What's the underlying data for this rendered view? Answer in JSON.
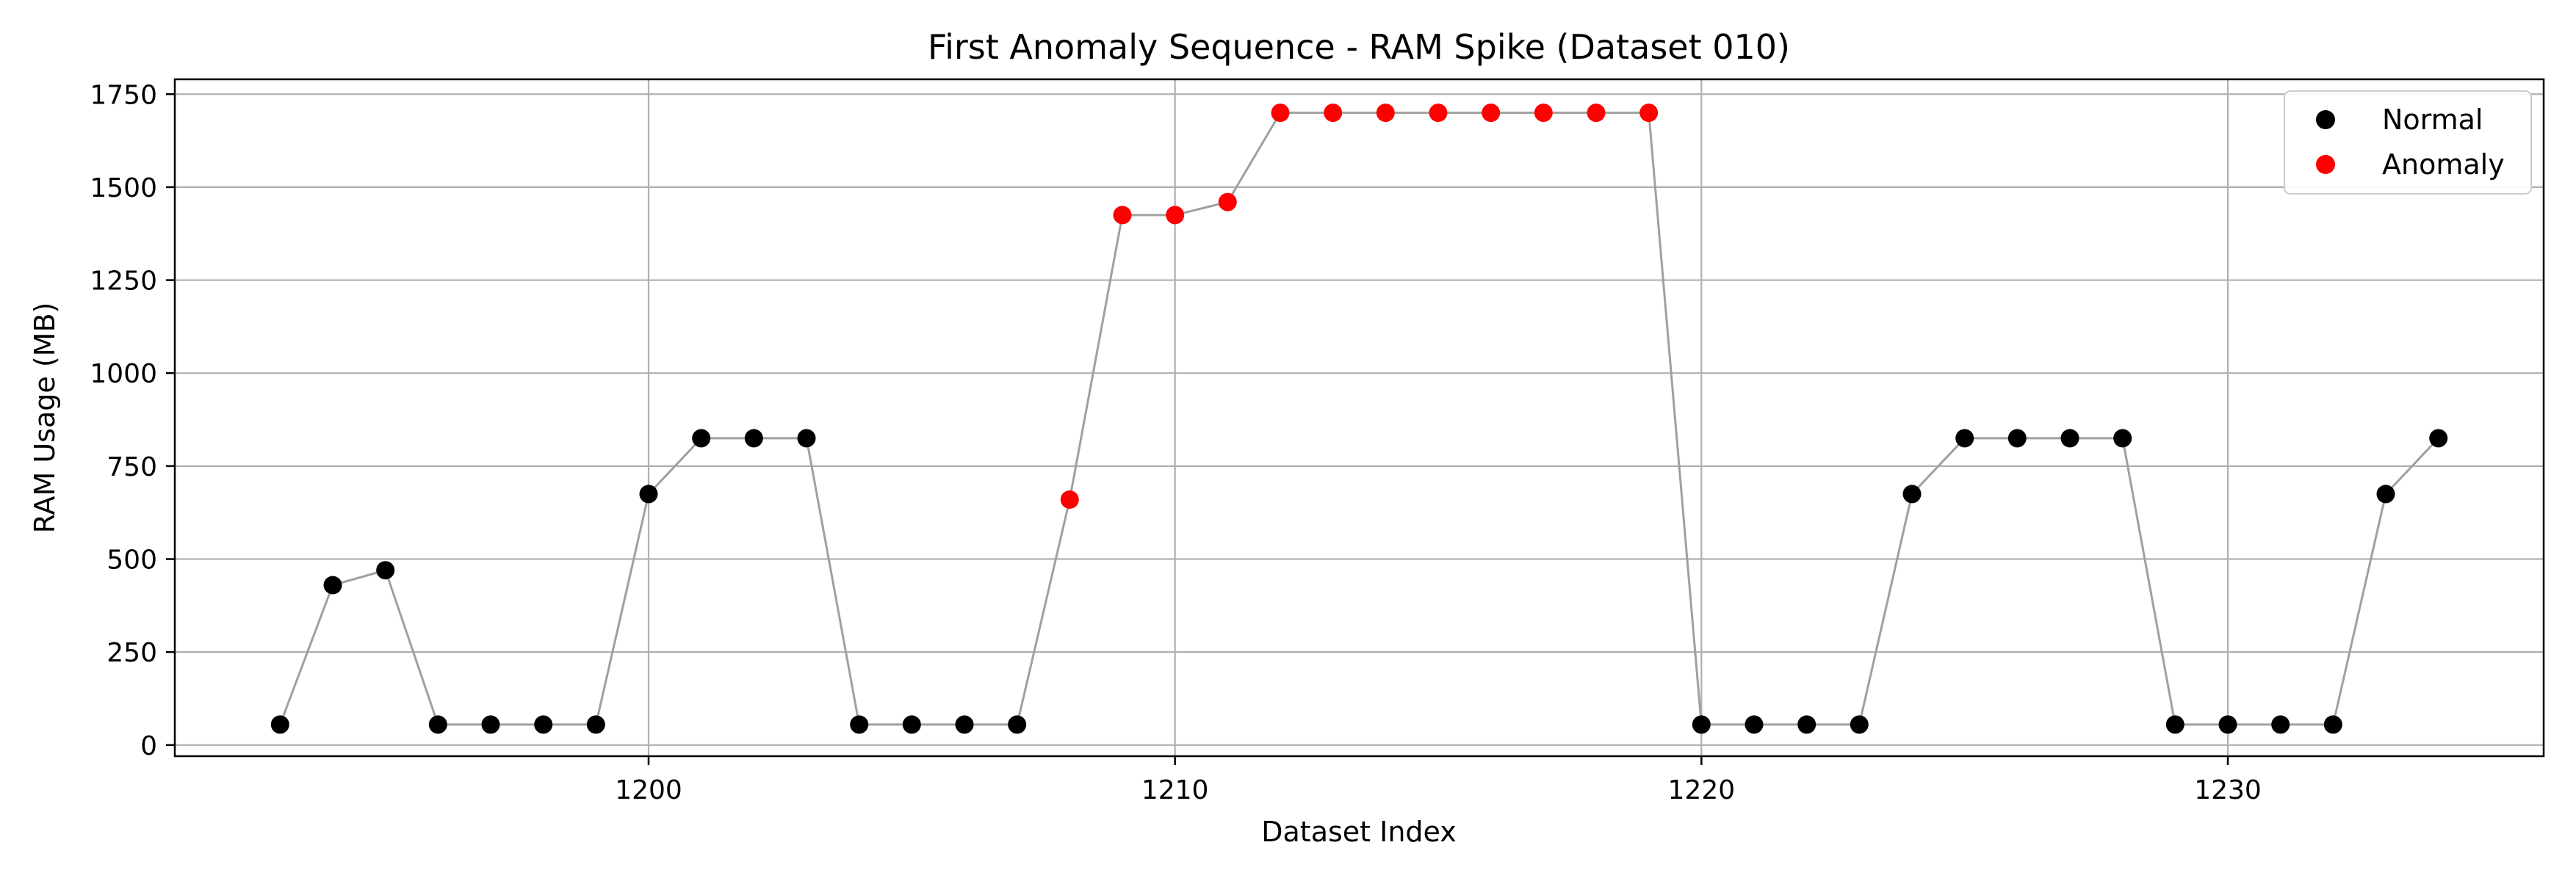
{
  "chart_data": {
    "type": "scatter",
    "title": "First Anomaly Sequence - RAM Spike (Dataset 010)",
    "xlabel": "Dataset Index",
    "ylabel": "RAM Usage (MB)",
    "xlim": [
      1191,
      1236
    ],
    "ylim": [
      -30,
      1790
    ],
    "xticks": [
      1200,
      1210,
      1220,
      1230
    ],
    "yticks": [
      0,
      250,
      500,
      750,
      1000,
      1250,
      1500,
      1750
    ],
    "grid": true,
    "legend_position": "top-right",
    "connector_line_color": "#a0a0a0",
    "series": [
      {
        "name": "Normal",
        "color": "#000000",
        "points": [
          [
            1193,
            55
          ],
          [
            1194,
            430
          ],
          [
            1195,
            470
          ],
          [
            1196,
            55
          ],
          [
            1197,
            55
          ],
          [
            1198,
            55
          ],
          [
            1199,
            55
          ],
          [
            1200,
            675
          ],
          [
            1201,
            825
          ],
          [
            1202,
            825
          ],
          [
            1203,
            825
          ],
          [
            1204,
            55
          ],
          [
            1205,
            55
          ],
          [
            1206,
            55
          ],
          [
            1207,
            55
          ],
          [
            1220,
            55
          ],
          [
            1221,
            55
          ],
          [
            1222,
            55
          ],
          [
            1223,
            55
          ],
          [
            1224,
            675
          ],
          [
            1225,
            825
          ],
          [
            1226,
            825
          ],
          [
            1227,
            825
          ],
          [
            1228,
            825
          ],
          [
            1229,
            55
          ],
          [
            1230,
            55
          ],
          [
            1231,
            55
          ],
          [
            1232,
            55
          ],
          [
            1233,
            675
          ],
          [
            1234,
            825
          ]
        ]
      },
      {
        "name": "Anomaly",
        "color": "#ff0000",
        "points": [
          [
            1208,
            660
          ],
          [
            1209,
            1425
          ],
          [
            1210,
            1425
          ],
          [
            1211,
            1460
          ],
          [
            1212,
            1700
          ],
          [
            1213,
            1700
          ],
          [
            1214,
            1700
          ],
          [
            1215,
            1700
          ],
          [
            1216,
            1700
          ],
          [
            1217,
            1700
          ],
          [
            1218,
            1700
          ],
          [
            1219,
            1700
          ]
        ]
      }
    ]
  }
}
